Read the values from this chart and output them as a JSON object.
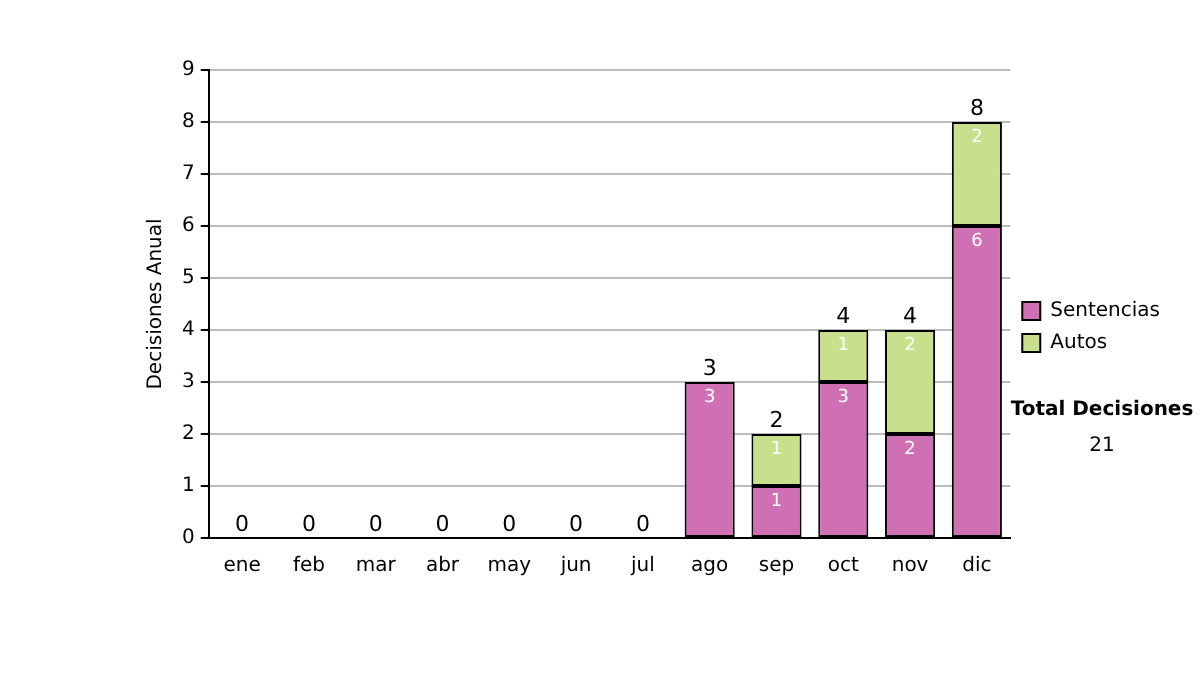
{
  "chart_data": {
    "type": "bar",
    "stacked": true,
    "ylabel": "Decisiones Anual",
    "categories": [
      "ene",
      "feb",
      "mar",
      "abr",
      "may",
      "jun",
      "jul",
      "ago",
      "sep",
      "oct",
      "nov",
      "dic"
    ],
    "series": [
      {
        "name": "Sentencias",
        "color": "#d070b4",
        "values": [
          0,
          0,
          0,
          0,
          0,
          0,
          0,
          3,
          1,
          3,
          2,
          6
        ],
        "value_labels": [
          null,
          null,
          null,
          null,
          null,
          null,
          null,
          "3",
          "1",
          "3",
          "2",
          "6"
        ]
      },
      {
        "name": "Autos",
        "color": "#c8e08c",
        "values": [
          0,
          0,
          0,
          0,
          0,
          0,
          0,
          0,
          1,
          1,
          2,
          2
        ],
        "value_labels": [
          null,
          null,
          null,
          null,
          null,
          null,
          null,
          null,
          "1",
          "1",
          "2",
          "2"
        ]
      }
    ],
    "totals": [
      "0",
      "0",
      "0",
      "0",
      "0",
      "0",
      "0",
      "3",
      "2",
      "4",
      "4",
      "8"
    ],
    "ylim": [
      0,
      9
    ],
    "yticks": [
      0,
      1,
      2,
      3,
      4,
      5,
      6,
      7,
      8,
      9
    ],
    "grid": "y",
    "legend": "right",
    "annotations": [
      "Total Decisiones",
      "21"
    ]
  }
}
